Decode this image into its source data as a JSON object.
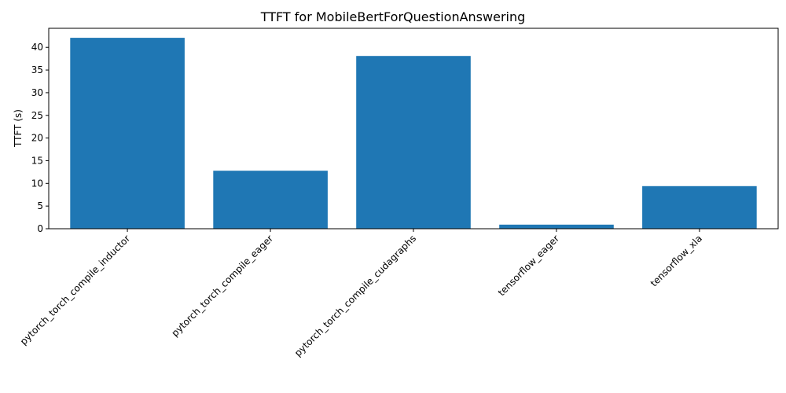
{
  "chart_data": {
    "type": "bar",
    "title": "TTFT for MobileBertForQuestionAnswering",
    "xlabel": "",
    "ylabel": "TTFT (s)",
    "categories": [
      "pytorch_torch_compile_inductor",
      "pytorch_torch_compile_eager",
      "pytorch_torch_compile_cudagraphs",
      "tensorflow_eager",
      "tensorflow_xla"
    ],
    "values": [
      42.1,
      12.8,
      38.1,
      0.9,
      9.4
    ],
    "ylim": [
      0,
      44.2
    ],
    "yticks": [
      0,
      5,
      10,
      15,
      20,
      25,
      30,
      35,
      40
    ],
    "grid": false,
    "bar_color": "#1f77b4"
  }
}
